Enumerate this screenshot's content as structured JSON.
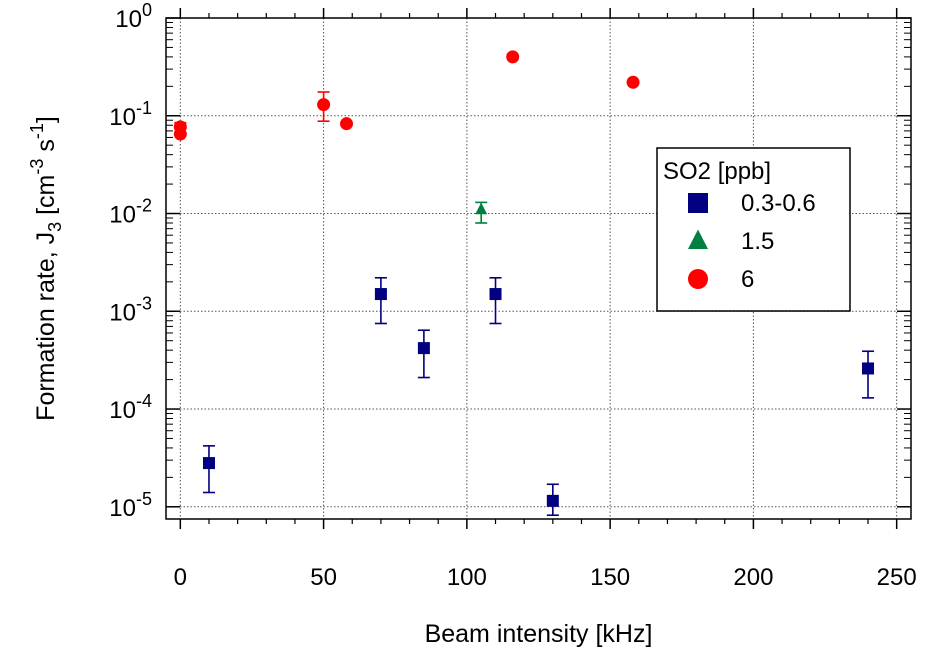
{
  "chart_data": {
    "type": "scatter",
    "xlabel": "Beam intensity [kHz]",
    "ylabel": {
      "main": "Formation rate, J",
      "sub": "3",
      "bracket_open": " [cm",
      "exp1": "-3",
      "mid": " s",
      "exp2": "-1",
      "bracket_close": "]"
    },
    "xlim": [
      -5,
      255
    ],
    "ylim": [
      7.5e-06,
      1.0
    ],
    "y_scale": "log",
    "grid": true,
    "x_ticks": [
      0,
      50,
      100,
      150,
      200,
      250
    ],
    "y_ticks": [
      {
        "value": 1e-05,
        "base": "10",
        "exp": "-5"
      },
      {
        "value": 0.0001,
        "base": "10",
        "exp": "-4"
      },
      {
        "value": 0.001,
        "base": "10",
        "exp": "-3"
      },
      {
        "value": 0.01,
        "base": "10",
        "exp": "-2"
      },
      {
        "value": 0.1,
        "base": "10",
        "exp": "-1"
      },
      {
        "value": 1,
        "base": "10",
        "exp": "0"
      }
    ],
    "legend": {
      "title": "SO2 [ppb]",
      "placement": "right"
    },
    "series": [
      {
        "name": "0.3-0.6",
        "marker": "square",
        "color": "#000080",
        "points": [
          {
            "x": 10,
            "y": 2.8e-05,
            "err_low": 1.4e-05,
            "err_high": 4.2e-05
          },
          {
            "x": 70,
            "y": 0.0015,
            "err_low": 0.00075,
            "err_high": 0.0022
          },
          {
            "x": 85,
            "y": 0.00042,
            "err_low": 0.00021,
            "err_high": 0.00064
          },
          {
            "x": 110,
            "y": 0.0015,
            "err_low": 0.00075,
            "err_high": 0.0022
          },
          {
            "x": 130,
            "y": 1.15e-05,
            "err_low": 8.2e-06,
            "err_high": 1.7e-05
          },
          {
            "x": 240,
            "y": 0.00026,
            "err_low": 0.00013,
            "err_high": 0.00039
          }
        ]
      },
      {
        "name": "1.5",
        "marker": "triangle",
        "color": "#008040",
        "points": [
          {
            "x": 105,
            "y": 0.011,
            "err_low": 0.008,
            "err_high": 0.013
          }
        ]
      },
      {
        "name": "6",
        "marker": "circle",
        "color": "#ff0000",
        "points": [
          {
            "x": 0,
            "y": 0.065
          },
          {
            "x": 0,
            "y": 0.077,
            "err_low": 0.068,
            "err_high": 0.085
          },
          {
            "x": 50,
            "y": 0.13,
            "err_low": 0.088,
            "err_high": 0.175
          },
          {
            "x": 58,
            "y": 0.083
          },
          {
            "x": 116,
            "y": 0.4
          },
          {
            "x": 158,
            "y": 0.22
          }
        ]
      }
    ]
  }
}
